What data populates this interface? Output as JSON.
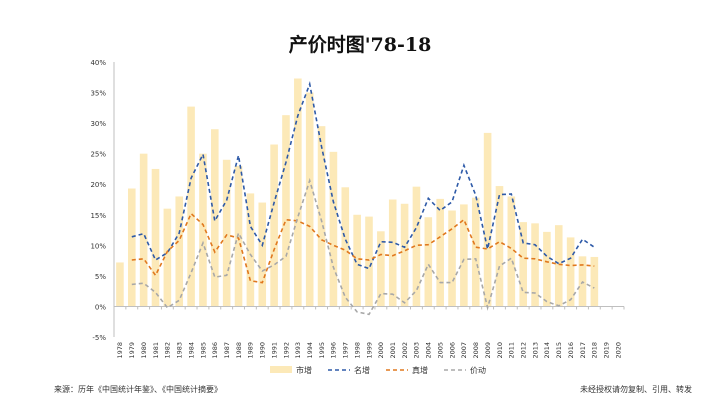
{
  "chart_data": {
    "type": "bar+line",
    "title": "产价时图'78-18",
    "xlabel": "",
    "ylabel": "",
    "ylim": [
      -5,
      40
    ],
    "yticks": [
      "-5%",
      "0%",
      "5%",
      "10%",
      "15%",
      "20%",
      "25%",
      "30%",
      "35%",
      "40%"
    ],
    "grid": false,
    "legend_position": "bottom",
    "categories": [
      "1978",
      "1979",
      "1980",
      "1981",
      "1982",
      "1983",
      "1984",
      "1985",
      "1986",
      "1987",
      "1988",
      "1989",
      "1990",
      "1991",
      "1992",
      "1993",
      "1994",
      "1995",
      "1996",
      "1997",
      "1998",
      "1999",
      "2000",
      "2001",
      "2002",
      "2003",
      "2004",
      "2005",
      "2006",
      "2007",
      "2008",
      "2009",
      "2010",
      "2011",
      "2012",
      "2013",
      "2014",
      "2015",
      "2016",
      "2017",
      "2018",
      "2019",
      "2020"
    ],
    "series": [
      {
        "name": "市增",
        "kind": "bar",
        "color": "#fce9b8",
        "values": [
          7.2,
          19.3,
          25.0,
          22.5,
          16.0,
          18.0,
          32.7,
          25.0,
          29.0,
          24.0,
          23.0,
          18.5,
          17.0,
          26.5,
          31.3,
          37.3,
          35.0,
          29.5,
          25.3,
          19.5,
          15.0,
          14.7,
          12.3,
          17.5,
          16.8,
          19.6,
          14.6,
          17.6,
          15.7,
          16.7,
          17.8,
          28.4,
          19.7,
          18.0,
          13.8,
          13.6,
          12.2,
          13.3,
          11.3,
          8.2,
          8.1,
          null,
          null
        ]
      },
      {
        "name": "名增",
        "kind": "line",
        "color": "#2e5aa8",
        "dash": "4,3",
        "values": [
          null,
          11.4,
          11.9,
          7.6,
          8.8,
          12.0,
          21.0,
          24.9,
          14.0,
          17.4,
          24.7,
          13.1,
          10.0,
          17.0,
          23.6,
          31.2,
          36.4,
          26.1,
          17.1,
          11.0,
          6.9,
          6.2,
          10.6,
          10.5,
          9.7,
          12.9,
          17.7,
          15.7,
          17.1,
          23.1,
          18.2,
          9.4,
          18.3,
          18.4,
          10.4,
          10.1,
          8.2,
          7.0,
          7.9,
          11.0,
          9.7,
          null,
          null
        ]
      },
      {
        "name": "真增",
        "kind": "line",
        "color": "#e0781e",
        "dash": "4,3",
        "values": [
          null,
          7.6,
          7.8,
          5.1,
          9.0,
          10.8,
          15.2,
          13.4,
          8.9,
          11.7,
          11.2,
          4.2,
          3.9,
          9.3,
          14.2,
          14.0,
          13.1,
          10.9,
          10.0,
          9.2,
          7.8,
          7.6,
          8.5,
          8.3,
          9.1,
          10.0,
          10.1,
          11.4,
          12.7,
          14.2,
          9.7,
          9.4,
          10.6,
          9.5,
          7.9,
          7.8,
          7.3,
          6.9,
          6.7,
          6.8,
          6.6,
          null,
          null
        ]
      },
      {
        "name": "价动",
        "kind": "line",
        "color": "#a8a8a8",
        "dash": "4,3",
        "values": [
          null,
          3.6,
          3.8,
          2.3,
          -0.2,
          1.0,
          5.5,
          10.4,
          4.8,
          5.1,
          12.0,
          8.5,
          5.8,
          6.8,
          8.2,
          14.6,
          20.6,
          14.0,
          6.4,
          1.5,
          -0.9,
          -1.3,
          2.1,
          2.0,
          0.6,
          2.6,
          6.9,
          3.9,
          3.9,
          7.7,
          7.8,
          -0.2,
          6.6,
          7.9,
          2.3,
          2.2,
          0.8,
          0.1,
          1.1,
          4.0,
          3.0,
          null,
          null
        ]
      }
    ]
  },
  "notes": {
    "source": "来源：历年《中国统计年鉴》、《中国统计摘要》",
    "copyright": "未经授权请勿复制、引用、转发"
  }
}
